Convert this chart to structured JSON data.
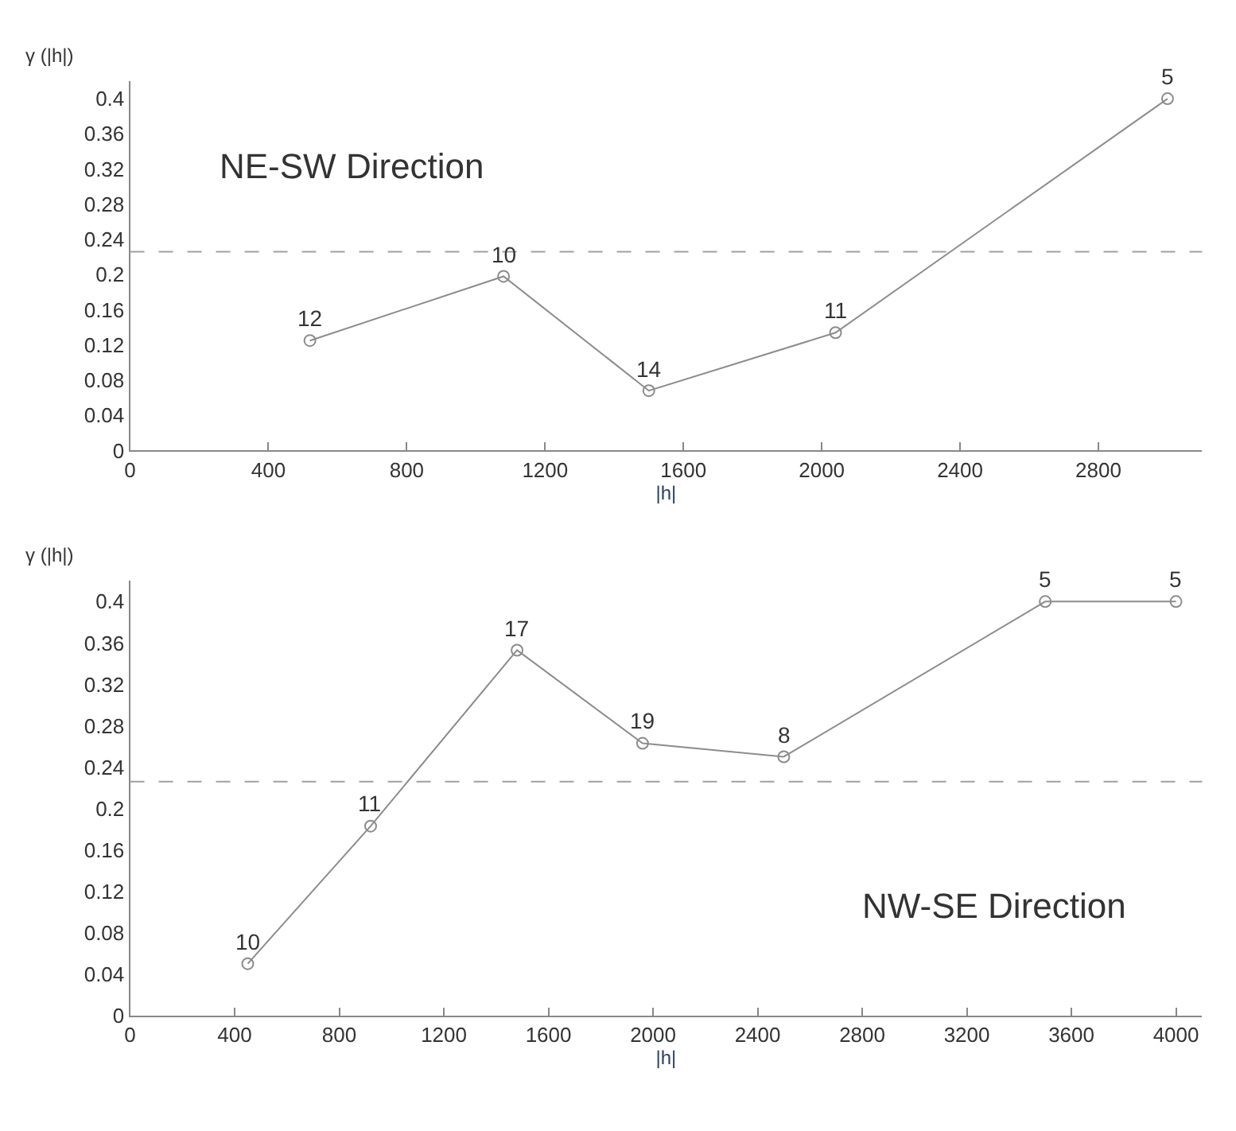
{
  "chart_data": [
    {
      "type": "line",
      "title": "NE-SW Direction",
      "xlabel": "|h|",
      "ylabel": "γ (|h|)",
      "x": [
        520,
        1080,
        1500,
        2040,
        3000
      ],
      "series": [
        {
          "color": "#8c8c8c",
          "values": [
            0.125,
            0.198,
            0.068,
            0.134,
            0.4
          ]
        }
      ],
      "xlim": [
        0,
        3100
      ],
      "xticks": [
        0,
        400,
        800,
        1200,
        1600,
        2000,
        2400,
        2800
      ],
      "ylim": [
        0,
        0.42
      ],
      "yticks": [
        0,
        0.04,
        0.08,
        0.12,
        0.16,
        0.2,
        0.24,
        0.28,
        0.32,
        0.36,
        0.4
      ],
      "ref_lines": [
        {
          "axis": "y",
          "value": 0.226,
          "color": "#a0a0a0",
          "line_style": "dashed"
        }
      ],
      "annotations": [
        {
          "text": "12",
          "x": 520,
          "y": 0.125
        },
        {
          "text": "10",
          "x": 1080,
          "y": 0.198
        },
        {
          "text": "14",
          "x": 1500,
          "y": 0.068
        },
        {
          "text": "11",
          "x": 2040,
          "y": 0.134
        },
        {
          "text": "5",
          "x": 3000,
          "y": 0.4
        }
      ],
      "marker": "circle",
      "line_style": "solid"
    },
    {
      "type": "line",
      "title": "NW-SE Direction",
      "xlabel": "|h|",
      "ylabel": "γ (|h|)",
      "x": [
        450,
        920,
        1480,
        1960,
        2500,
        3500,
        4000
      ],
      "series": [
        {
          "color": "#8c8c8c",
          "values": [
            0.05,
            0.183,
            0.353,
            0.263,
            0.25,
            0.4,
            0.4
          ]
        }
      ],
      "xlim": [
        0,
        4100
      ],
      "xticks": [
        0,
        400,
        800,
        1200,
        1600,
        2000,
        2400,
        2800,
        3200,
        3600,
        4000
      ],
      "ylim": [
        0,
        0.42
      ],
      "yticks": [
        0,
        0.04,
        0.08,
        0.12,
        0.16,
        0.2,
        0.24,
        0.28,
        0.32,
        0.36,
        0.4
      ],
      "ref_lines": [
        {
          "axis": "y",
          "value": 0.226,
          "color": "#a0a0a0",
          "line_style": "dashed"
        }
      ],
      "annotations": [
        {
          "text": "10",
          "x": 450,
          "y": 0.05
        },
        {
          "text": "11",
          "x": 920,
          "y": 0.183
        },
        {
          "text": "17",
          "x": 1480,
          "y": 0.353
        },
        {
          "text": "19",
          "x": 1960,
          "y": 0.263
        },
        {
          "text": "8",
          "x": 2500,
          "y": 0.25
        },
        {
          "text": "5",
          "x": 3500,
          "y": 0.4
        },
        {
          "text": "5",
          "x": 4000,
          "y": 0.4
        }
      ],
      "marker": "circle",
      "line_style": "solid"
    }
  ]
}
